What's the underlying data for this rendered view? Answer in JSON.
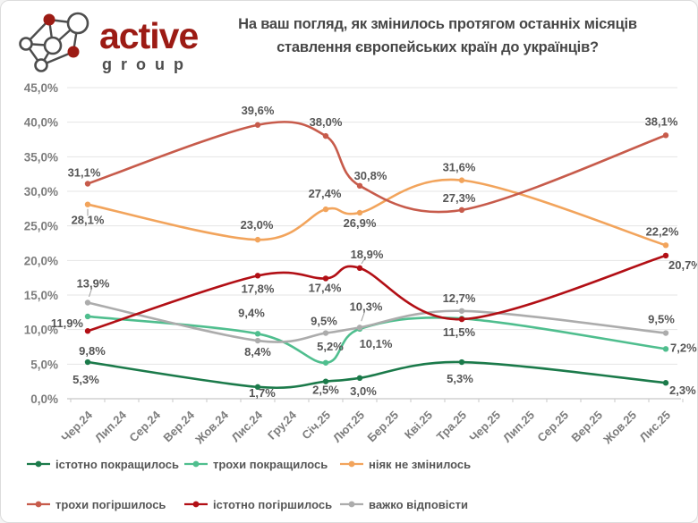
{
  "logo": {
    "brand": "active",
    "sub": "group"
  },
  "title": {
    "line1": "На ваш погляд, як змінилось протягом останніх місяців",
    "line2": "ставлення європейських країн до українців?"
  },
  "chart_data": {
    "type": "line",
    "smoothed": true,
    "grid": true,
    "legend_position": "bottom",
    "title": "На ваш погляд, як змінилось протягом останніх місяців ставлення європейських країн до українців?",
    "categories": [
      "Чер.24",
      "Лип.24",
      "Сер.24",
      "Вер.24",
      "Жов.24",
      "Лис.24",
      "Гру.24",
      "Січ.25",
      "Лют.25",
      "Бер.25",
      "Кві.25",
      "Тра.25",
      "Чер.25",
      "Лип.25",
      "Сер.25",
      "Вер.25",
      "Жов.25",
      "Лис.25"
    ],
    "survey_wave_category_indices": [
      0,
      5,
      7,
      8,
      11,
      17
    ],
    "survey_wave_names": [
      "Чер.24",
      "Лис.24",
      "Січ.25",
      "Лют.25",
      "Тра.25",
      "Лис.25"
    ],
    "y_axis": {
      "min": 0,
      "max": 45,
      "step": 5,
      "tick_labels": [
        "0,0%",
        "5,0%",
        "10,0%",
        "15,0%",
        "20,0%",
        "25,0%",
        "30,0%",
        "35,0%",
        "40,0%",
        "45,0%"
      ]
    },
    "series": [
      {
        "name": "істотно покращилось",
        "color": "#1B7A4A",
        "values": [
          5.3,
          1.7,
          2.5,
          3.0,
          5.3,
          2.3
        ],
        "point_labels": [
          "5,3%",
          "1,7%",
          "2,5%",
          "3,0%",
          "5,3%",
          "2,3%"
        ]
      },
      {
        "name": "трохи покращилось",
        "color": "#4FBE8E",
        "values": [
          11.9,
          9.4,
          5.2,
          10.1,
          11.6,
          7.2
        ],
        "point_labels": [
          "11,9%",
          "9,4%",
          "5,2%",
          "10,1%",
          "",
          "7,2%"
        ]
      },
      {
        "name": "ніяк не змінилось",
        "color": "#F2A45C",
        "values": [
          28.1,
          23.0,
          27.4,
          26.9,
          31.6,
          22.2
        ],
        "point_labels": [
          "28,1%",
          "23,0%",
          "27,4%",
          "26,9%",
          "31,6%",
          "22,2%"
        ]
      },
      {
        "name": "трохи погіршилось",
        "color": "#C75B4B",
        "values": [
          31.1,
          39.6,
          38.0,
          30.8,
          27.3,
          38.1
        ],
        "point_labels": [
          "31,1%",
          "39,6%",
          "38,0%",
          "30,8%",
          "27,3%",
          "38,1%"
        ]
      },
      {
        "name": "істотно погіршилось",
        "color": "#B20F15",
        "values": [
          9.8,
          17.8,
          17.4,
          18.9,
          11.5,
          20.7
        ],
        "point_labels": [
          "9,8%",
          "17,8%",
          "17,4%",
          "18,9%",
          "11,5%",
          "20,7%"
        ]
      },
      {
        "name": "важко відповісти",
        "color": "#ACACAC",
        "values": [
          13.9,
          8.4,
          9.5,
          10.3,
          12.7,
          9.5
        ],
        "point_labels": [
          "13,9%",
          "8,4%",
          "9,5%",
          "10,3%",
          "12,7%",
          "9,5%"
        ]
      }
    ],
    "label_layout": [
      [
        [
          -2,
          24,
          "m",
          0
        ],
        [
          5,
          11,
          "m",
          0
        ],
        [
          0,
          14,
          "m",
          0
        ],
        [
          4,
          19,
          "m",
          0
        ],
        [
          -2,
          23,
          "m",
          0
        ],
        [
          4,
          13,
          "s",
          0
        ]
      ],
      [
        [
          -5,
          12,
          "e",
          0
        ],
        [
          -7,
          -19,
          "m",
          0
        ],
        [
          5,
          -14,
          "m",
          0
        ],
        [
          18,
          21,
          "m",
          0
        ],
        [
          0,
          0,
          "m",
          0
        ],
        [
          5,
          3,
          "s",
          0
        ]
      ],
      [
        [
          0,
          22,
          "m",
          1
        ],
        [
          -1,
          -12,
          "m",
          0
        ],
        [
          -1,
          -13,
          "m",
          0
        ],
        [
          0,
          16,
          "m",
          0
        ],
        [
          -3,
          -10,
          "m",
          0
        ],
        [
          -4,
          -11,
          "m",
          0
        ]
      ],
      [
        [
          -4,
          -8,
          "m",
          0
        ],
        [
          0,
          -12,
          "m",
          0
        ],
        [
          0,
          -11,
          "m",
          0
        ],
        [
          12,
          -7,
          "m",
          0
        ],
        [
          -3,
          -9,
          "m",
          0
        ],
        [
          -5,
          -11,
          "m",
          0
        ]
      ],
      [
        [
          5,
          27,
          "m",
          0
        ],
        [
          0,
          19,
          "m",
          0
        ],
        [
          -1,
          15,
          "m",
          0
        ],
        [
          8,
          -11,
          "m",
          1
        ],
        [
          -3,
          19,
          "m",
          0
        ],
        [
          3,
          15,
          "s",
          0
        ]
      ],
      [
        [
          6,
          -17,
          "m",
          1
        ],
        [
          0,
          17,
          "m",
          0
        ],
        [
          -2,
          -9,
          "m",
          0
        ],
        [
          7,
          -19,
          "m",
          1
        ],
        [
          -3,
          -10,
          "m",
          0
        ],
        [
          -5,
          -11,
          "m",
          0
        ]
      ]
    ],
    "legend_rows": [
      [
        0,
        1,
        2
      ],
      [
        3,
        4,
        5
      ]
    ],
    "draw_order": [
      0,
      1,
      2,
      3,
      5,
      4
    ]
  },
  "style": {
    "grid_color": "#E4E4E4",
    "axis_color": "#C8C8C8",
    "axis_label_color": "#7D7D7D",
    "data_label_color": "#565656",
    "title_color": "#474747",
    "logo_brand_color": "#9C1B14",
    "logo_sub_color": "#4D4D4D"
  }
}
